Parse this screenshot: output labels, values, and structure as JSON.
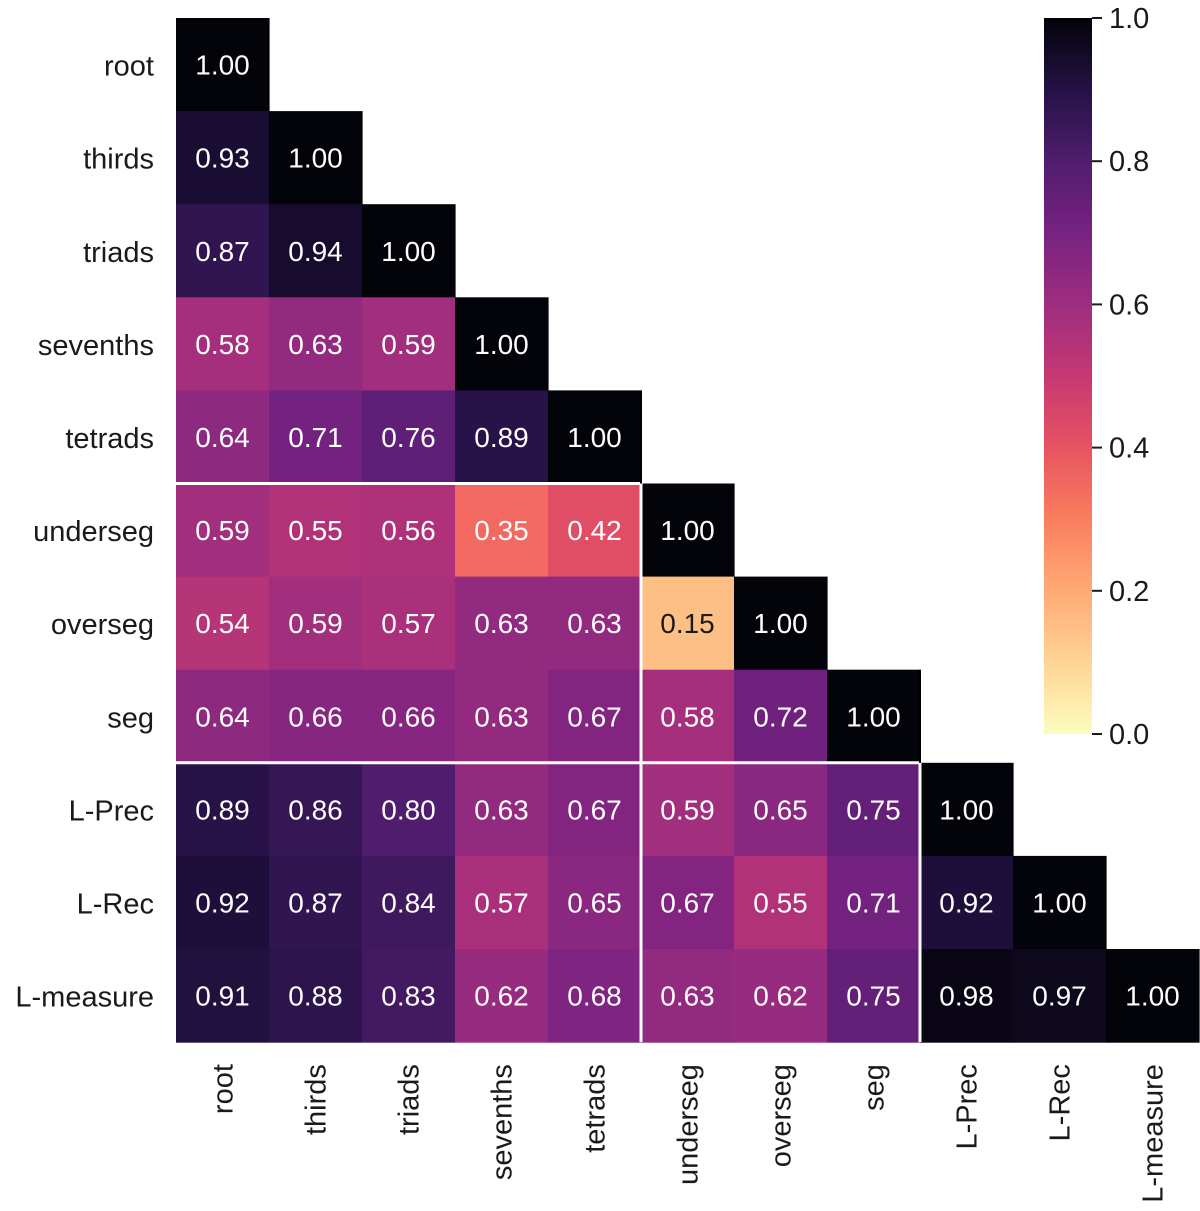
{
  "chart_data": {
    "type": "heatmap",
    "title": "",
    "xlabel": "",
    "ylabel": "",
    "labels": [
      "root",
      "thirds",
      "triads",
      "sevenths",
      "tetrads",
      "underseg",
      "overseg",
      "seg",
      "L-Prec",
      "L-Rec",
      "L-measure"
    ],
    "matrix": [
      [
        1.0
      ],
      [
        0.93,
        1.0
      ],
      [
        0.87,
        0.94,
        1.0
      ],
      [
        0.58,
        0.63,
        0.59,
        1.0
      ],
      [
        0.64,
        0.71,
        0.76,
        0.89,
        1.0
      ],
      [
        0.59,
        0.55,
        0.56,
        0.35,
        0.42,
        1.0
      ],
      [
        0.54,
        0.59,
        0.57,
        0.63,
        0.63,
        0.15,
        1.0
      ],
      [
        0.64,
        0.66,
        0.66,
        0.63,
        0.67,
        0.58,
        0.72,
        1.0
      ],
      [
        0.89,
        0.86,
        0.8,
        0.63,
        0.67,
        0.59,
        0.65,
        0.75,
        1.0
      ],
      [
        0.92,
        0.87,
        0.84,
        0.57,
        0.65,
        0.67,
        0.55,
        0.71,
        0.92,
        1.0
      ],
      [
        0.91,
        0.88,
        0.83,
        0.62,
        0.68,
        0.63,
        0.62,
        0.75,
        0.98,
        0.97,
        1.0
      ]
    ],
    "value_format": "2 decimals",
    "group_boundaries_after_index": [
      4,
      7
    ],
    "colormap": "magma_r",
    "colorbar": {
      "vmin": 0.0,
      "vmax": 1.0,
      "ticks": [
        "0.0",
        "0.2",
        "0.4",
        "0.6",
        "0.8",
        "1.0"
      ],
      "placement": "right"
    },
    "mask": "upper-triangle",
    "grid": false
  }
}
